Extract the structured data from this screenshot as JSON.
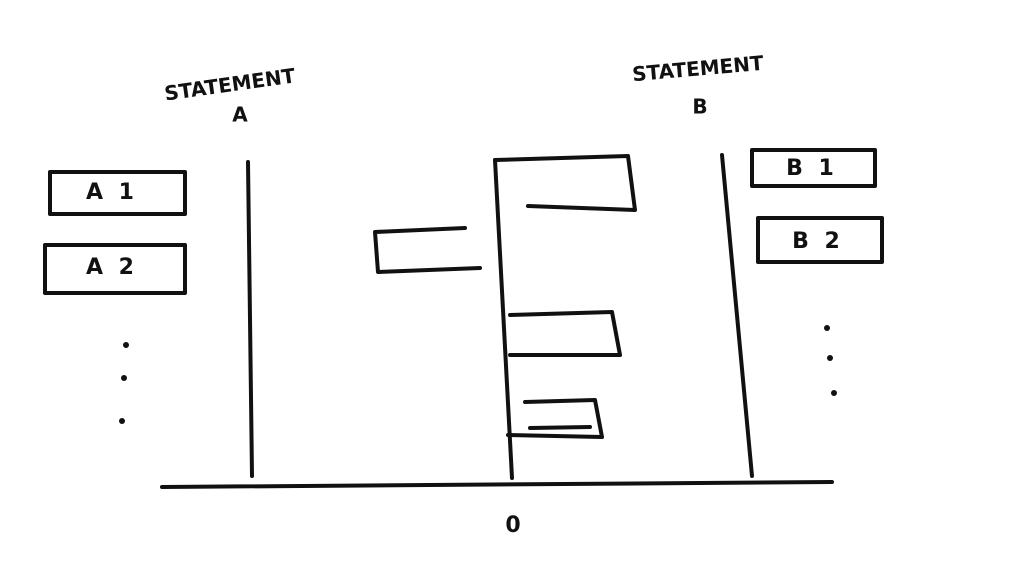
{
  "statement_a": {
    "title": "STATEMENT",
    "letter": "A",
    "items": [
      "A 1",
      "A 2"
    ]
  },
  "statement_b": {
    "title": "STATEMENT",
    "letter": "B",
    "items": [
      "B 1",
      "B 2"
    ]
  },
  "axis": {
    "origin_label": "0"
  }
}
